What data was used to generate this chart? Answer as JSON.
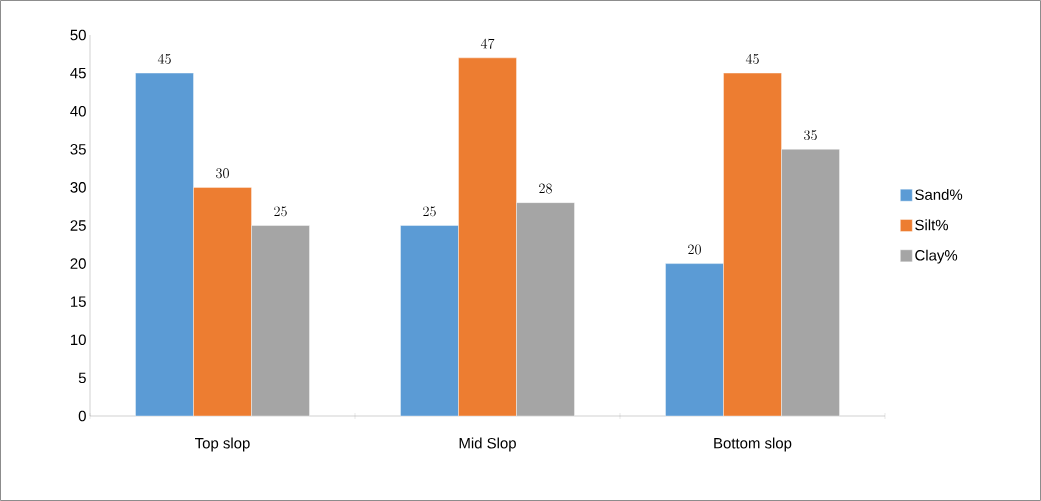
{
  "chart_data": {
    "type": "bar",
    "categories": [
      "Top slop",
      "Mid Slop",
      "Bottom slop"
    ],
    "series": [
      {
        "name": "Sand%",
        "color": "#5b9bd5",
        "values": [
          45,
          25,
          20
        ]
      },
      {
        "name": "Silt%",
        "color": "#ed7d31",
        "values": [
          30,
          47,
          45
        ]
      },
      {
        "name": "Clay%",
        "color": "#a5a5a5",
        "values": [
          25,
          28,
          35
        ]
      }
    ],
    "ylim": [
      0,
      50
    ],
    "yticks": [
      0,
      5,
      10,
      15,
      20,
      25,
      30,
      35,
      40,
      45,
      50
    ],
    "data_labels": true,
    "legend": "right",
    "grid": false
  }
}
